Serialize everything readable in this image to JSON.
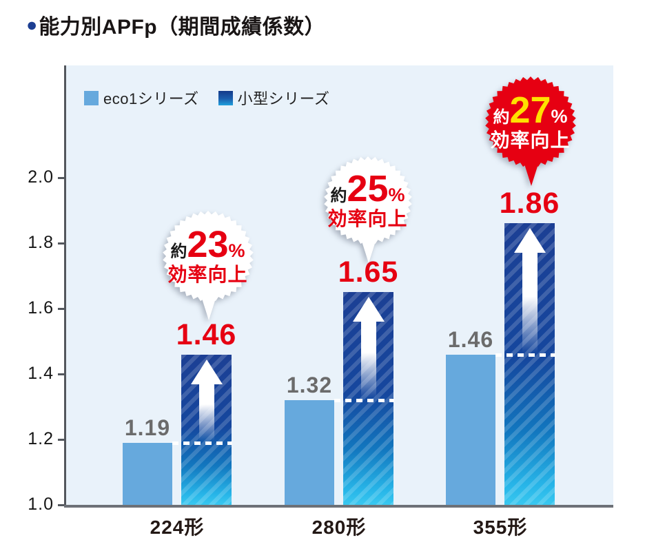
{
  "page": {
    "title_bullet": "●",
    "title": "能力別APFp（期間成績係数）"
  },
  "legend": {
    "items": [
      {
        "label": "eco1シリーズ"
      },
      {
        "label": "小型シリーズ"
      }
    ]
  },
  "chart_data": {
    "type": "bar",
    "title": "能力別APFp（期間成績係数）",
    "categories": [
      "224形",
      "280形",
      "355形"
    ],
    "series": [
      {
        "name": "eco1シリーズ",
        "values": [
          1.19,
          1.32,
          1.46
        ],
        "color": "#66a9dd"
      },
      {
        "name": "小型シリーズ",
        "values": [
          1.46,
          1.65,
          1.86
        ],
        "color_gradient": [
          "#1c3f94",
          "#1277bf",
          "#39c8f0"
        ],
        "pattern": "diagonal-stripes",
        "overlay": "white-up-arrow"
      }
    ],
    "value_labels": {
      "eco1": [
        "1.19",
        "1.32",
        "1.46"
      ],
      "kogata": [
        "1.46",
        "1.65",
        "1.86"
      ]
    },
    "annotations": [
      {
        "approx": "約",
        "percent": "23",
        "unit": "%",
        "caption": "効率向上",
        "style": "white"
      },
      {
        "approx": "約",
        "percent": "25",
        "unit": "%",
        "caption": "効率向上",
        "style": "white"
      },
      {
        "approx": "約",
        "percent": "27",
        "unit": "%",
        "caption": "効率向上",
        "style": "red"
      }
    ],
    "ylim": [
      1.0,
      2.0
    ],
    "yticks": [
      "2.0",
      "1.8",
      "1.6",
      "1.4",
      "1.2",
      "1.0"
    ],
    "grid": false,
    "legend_position": "top-left",
    "plot_background": "#e9f2fa"
  },
  "colors": {
    "accent_red": "#e60012",
    "eco_bar": "#66a9dd",
    "balloon_number_yellow": "#ffe200",
    "axis_gray": "#53575d",
    "gray_value_label": "#6b6b6b",
    "title_bullet_blue": "#1c3e92"
  }
}
